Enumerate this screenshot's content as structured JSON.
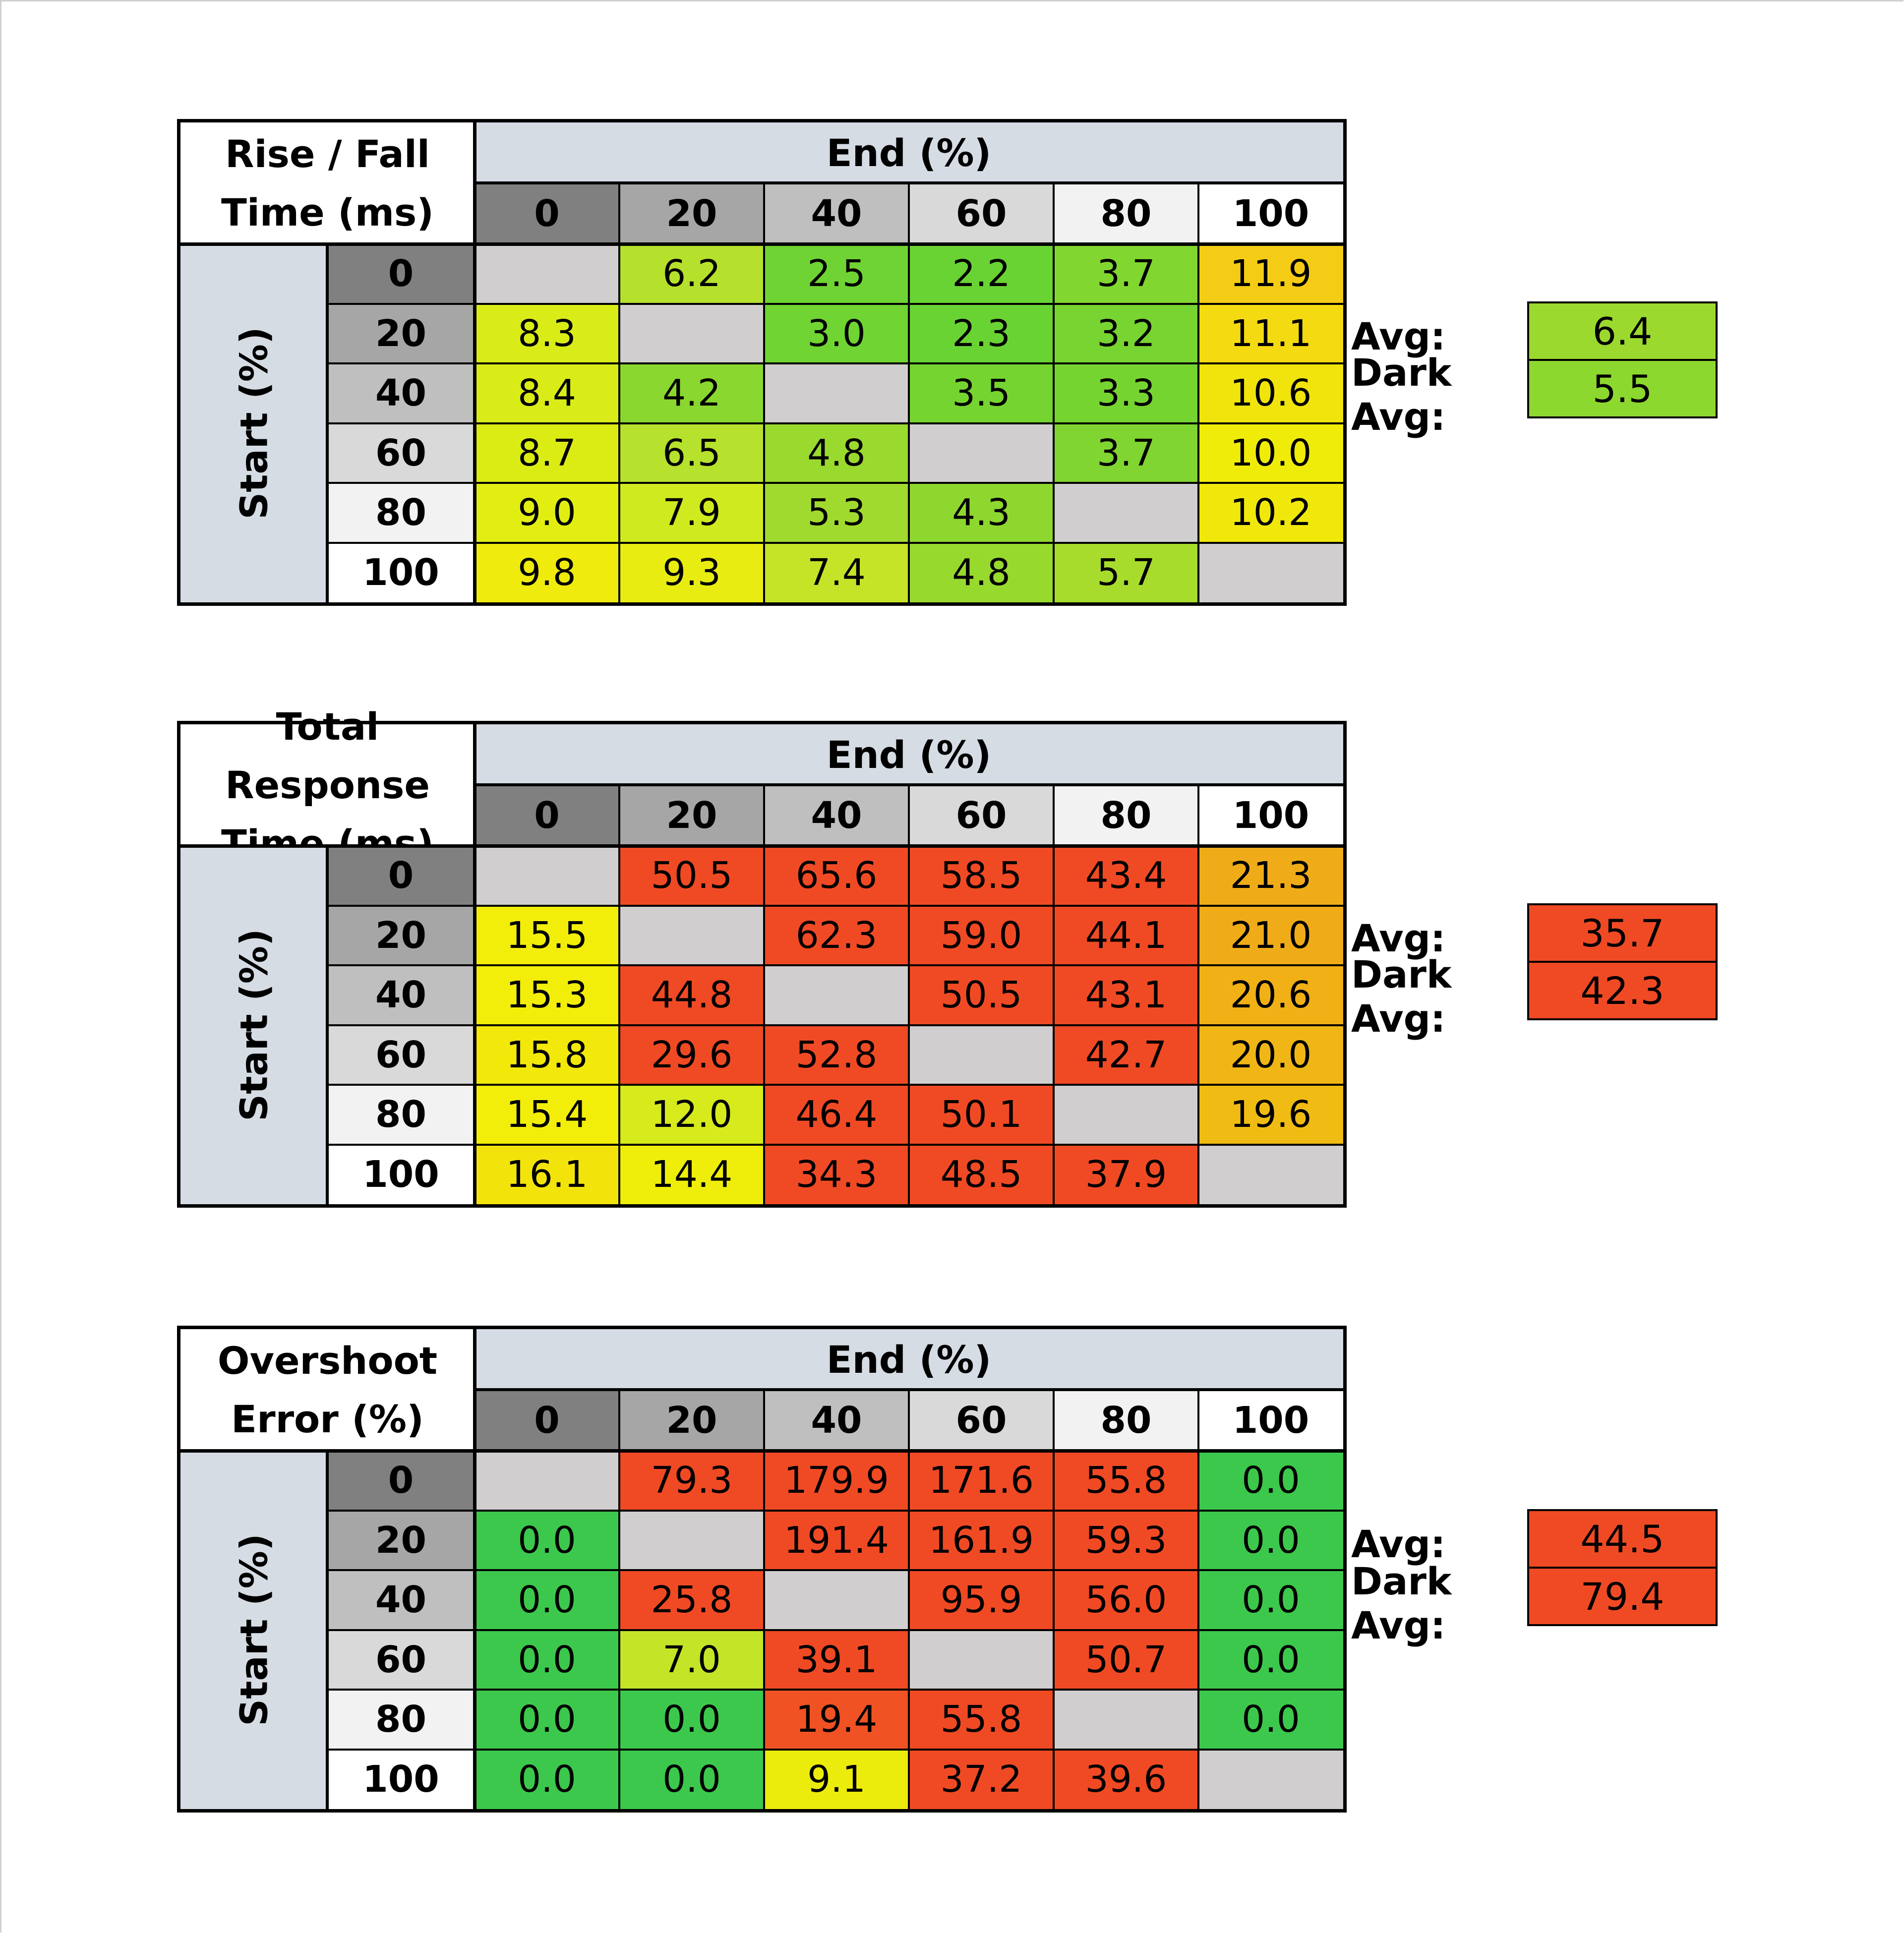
{
  "chart_data": [
    {
      "type": "heatmap",
      "title_lines": [
        "Rise / Fall",
        "Time (ms)"
      ],
      "xlabel": "End (%)",
      "ylabel": "Start (%)",
      "x_categories": [
        "0",
        "20",
        "40",
        "60",
        "80",
        "100"
      ],
      "y_categories": [
        "0",
        "20",
        "40",
        "60",
        "80",
        "100"
      ],
      "values": [
        [
          "",
          "6.2",
          "2.5",
          "2.2",
          "3.7",
          "11.9"
        ],
        [
          "8.3",
          "",
          "3.0",
          "2.3",
          "3.2",
          "11.1"
        ],
        [
          "8.4",
          "4.2",
          "",
          "3.5",
          "3.3",
          "10.6"
        ],
        [
          "8.7",
          "6.5",
          "4.8",
          "",
          "3.7",
          "10.0"
        ],
        [
          "9.0",
          "7.9",
          "5.3",
          "4.3",
          "",
          "10.2"
        ],
        [
          "9.8",
          "9.3",
          "7.4",
          "4.8",
          "5.7",
          ""
        ]
      ],
      "colors": [
        [
          "#d0cece",
          "#b5e12c",
          "#6fd433",
          "#6ad334",
          "#82d630",
          "#f4cc15"
        ],
        [
          "#d9ec17",
          "#d0cece",
          "#70d433",
          "#6ad334",
          "#78d431",
          "#f4da10"
        ],
        [
          "#d9ec17",
          "#8ad72f",
          "#d0cece",
          "#76d431",
          "#76d431",
          "#f0e40c"
        ],
        [
          "#dbec15",
          "#b6e12c",
          "#9ad92e",
          "#d0cece",
          "#80d530",
          "#f0ec0a"
        ],
        [
          "#e2ee12",
          "#cfea1e",
          "#a0da2e",
          "#8ed72f",
          "#d0cece",
          "#f0e80b"
        ],
        [
          "#efeb0c",
          "#e9ec10",
          "#c6e427",
          "#98d92e",
          "#a7dc2d",
          "#d0cece"
        ]
      ],
      "avg_label": "Avg:",
      "avg_value": "6.4",
      "avg_color": "#9bd92e",
      "dark_avg_label": "Dark Avg:",
      "dark_avg_value": "5.5",
      "dark_avg_color": "#8dd82f"
    },
    {
      "type": "heatmap",
      "title_lines": [
        "Total Response",
        "Time (ms)"
      ],
      "xlabel": "End (%)",
      "ylabel": "Start (%)",
      "x_categories": [
        "0",
        "20",
        "40",
        "60",
        "80",
        "100"
      ],
      "y_categories": [
        "0",
        "20",
        "40",
        "60",
        "80",
        "100"
      ],
      "values": [
        [
          "",
          "50.5",
          "65.6",
          "58.5",
          "43.4",
          "21.3"
        ],
        [
          "15.5",
          "",
          "62.3",
          "59.0",
          "44.1",
          "21.0"
        ],
        [
          "15.3",
          "44.8",
          "",
          "50.5",
          "43.1",
          "20.6"
        ],
        [
          "15.8",
          "29.6",
          "52.8",
          "",
          "42.7",
          "20.0"
        ],
        [
          "15.4",
          "12.0",
          "46.4",
          "50.1",
          "",
          "19.6"
        ],
        [
          "16.1",
          "14.4",
          "34.3",
          "48.5",
          "37.9",
          ""
        ]
      ],
      "colors": [
        [
          "#d0cece",
          "#f04a25",
          "#f04a25",
          "#f04a25",
          "#f04a25",
          "#f0ac18"
        ],
        [
          "#f2ee0a",
          "#d0cece",
          "#f04a25",
          "#f04a25",
          "#f04a25",
          "#f0ac18"
        ],
        [
          "#f2ee0a",
          "#f04a25",
          "#d0cece",
          "#f04a25",
          "#f04a25",
          "#f0b016"
        ],
        [
          "#f2e80a",
          "#f04a25",
          "#f04a25",
          "#d0cece",
          "#f04a25",
          "#f0b616"
        ],
        [
          "#f2ee0a",
          "#d6ea1c",
          "#f04a25",
          "#f04a25",
          "#d0cece",
          "#f0bc14"
        ],
        [
          "#f2e40a",
          "#eeee0a",
          "#f04a25",
          "#f04a25",
          "#f04a25",
          "#d0cece"
        ]
      ],
      "avg_label": "Avg:",
      "avg_value": "35.7",
      "avg_color": "#f04a25",
      "dark_avg_label": "Dark Avg:",
      "dark_avg_value": "42.3",
      "dark_avg_color": "#f04a25"
    },
    {
      "type": "heatmap",
      "title_lines": [
        "Overshoot",
        "Error (%)"
      ],
      "xlabel": "End (%)",
      "ylabel": "Start (%)",
      "x_categories": [
        "0",
        "20",
        "40",
        "60",
        "80",
        "100"
      ],
      "y_categories": [
        "0",
        "20",
        "40",
        "60",
        "80",
        "100"
      ],
      "values": [
        [
          "",
          "79.3",
          "179.9",
          "171.6",
          "55.8",
          "0.0"
        ],
        [
          "0.0",
          "",
          "191.4",
          "161.9",
          "59.3",
          "0.0"
        ],
        [
          "0.0",
          "25.8",
          "",
          "95.9",
          "56.0",
          "0.0"
        ],
        [
          "0.0",
          "7.0",
          "39.1",
          "",
          "50.7",
          "0.0"
        ],
        [
          "0.0",
          "0.0",
          "19.4",
          "55.8",
          "",
          "0.0"
        ],
        [
          "0.0",
          "0.0",
          "9.1",
          "37.2",
          "39.6",
          ""
        ]
      ],
      "colors": [
        [
          "#d0cece",
          "#f04a25",
          "#f04a25",
          "#f04a25",
          "#f04a25",
          "#3cc84c"
        ],
        [
          "#3cc84c",
          "#d0cece",
          "#f04a25",
          "#f04a25",
          "#f04a25",
          "#3cc84c"
        ],
        [
          "#3cc84c",
          "#f04a25",
          "#d0cece",
          "#f04a25",
          "#f04a25",
          "#3cc84c"
        ],
        [
          "#3cc84c",
          "#c4e428",
          "#f04a25",
          "#d0cece",
          "#f04a25",
          "#3cc84c"
        ],
        [
          "#3cc84c",
          "#3cc84c",
          "#f05224",
          "#f04a25",
          "#d0cece",
          "#3cc84c"
        ],
        [
          "#3cc84c",
          "#3cc84c",
          "#ecec0c",
          "#f04a25",
          "#f04a25",
          "#d0cece"
        ]
      ],
      "avg_label": "Avg:",
      "avg_value": "44.5",
      "avg_color": "#f04a25",
      "dark_avg_label": "Dark Avg:",
      "dark_avg_value": "79.4",
      "dark_avg_color": "#f04a25"
    }
  ],
  "header_colors": [
    "#808080",
    "#a6a6a6",
    "#bfbfbf",
    "#d9d9d9",
    "#f2f2f2",
    "#ffffff"
  ]
}
